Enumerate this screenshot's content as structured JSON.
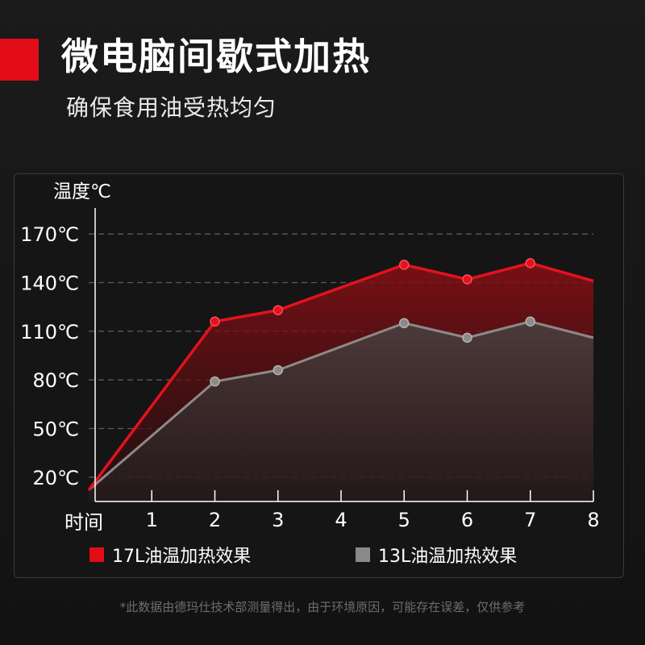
{
  "header": {
    "title": "微电脑间歇式加热",
    "subtitle": "确保食用油受热均匀"
  },
  "colors": {
    "accent": "#e20c16",
    "series_17l": "#e3121d",
    "series_13l": "#8c8a88",
    "grid": "#5a5a5a"
  },
  "chart_data": {
    "type": "area",
    "ylabel": "温度℃",
    "xlabel": "时间",
    "x": [
      0,
      1,
      2,
      3,
      4,
      5,
      6,
      7,
      8
    ],
    "x_tick_labels": [
      "1",
      "2",
      "3",
      "4",
      "5",
      "6",
      "7",
      "8"
    ],
    "y_tick_labels": [
      "170℃",
      "140℃",
      "110℃",
      "80℃",
      "50℃",
      "20℃"
    ],
    "y_ticks": [
      170,
      140,
      110,
      80,
      50,
      20
    ],
    "ylim": [
      5,
      185
    ],
    "xlim": [
      0,
      8
    ],
    "grid": true,
    "legend_position": "bottom",
    "series": [
      {
        "name": "17L油温加热效果",
        "points": [
          {
            "x": 0,
            "y": 12
          },
          {
            "x": 2,
            "y": 116
          },
          {
            "x": 3,
            "y": 123
          },
          {
            "x": 5,
            "y": 151
          },
          {
            "x": 6,
            "y": 142
          },
          {
            "x": 7,
            "y": 152
          },
          {
            "x": 8,
            "y": 141
          }
        ],
        "markers": [
          2,
          3,
          5,
          6,
          7
        ]
      },
      {
        "name": "13L油温加热效果",
        "points": [
          {
            "x": 0,
            "y": 12
          },
          {
            "x": 2,
            "y": 79
          },
          {
            "x": 3,
            "y": 86
          },
          {
            "x": 5,
            "y": 115
          },
          {
            "x": 6,
            "y": 106
          },
          {
            "x": 7,
            "y": 116
          },
          {
            "x": 8,
            "y": 106
          }
        ],
        "markers": [
          2,
          3,
          5,
          6,
          7
        ]
      }
    ]
  },
  "legend": {
    "items": [
      {
        "label": "17L油温加热效果",
        "color": "#e20c16"
      },
      {
        "label": "13L油温加热效果",
        "color": "#8c8a88"
      }
    ]
  },
  "footnote": "*此数据由德玛仕技术部测量得出，由于环境原因，可能存在误差，仅供参考"
}
